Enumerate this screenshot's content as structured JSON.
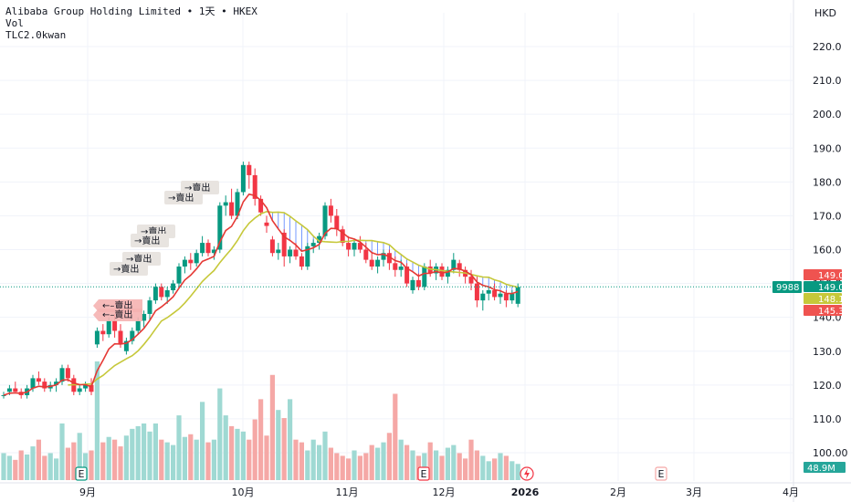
{
  "header": {
    "symbol_line": "Alibaba Group Holding Limited • 1天 • HKEX",
    "indicator_vol": "Vol",
    "indicator_tlc": "TLC2.0kwan"
  },
  "currency": "HKD",
  "colors": {
    "up": "#26a69a",
    "down": "#ef5350",
    "ma_red": "#e53935",
    "ma_yellow": "#c6c83a",
    "cloud": "#2962ff"
  },
  "price_tags": [
    {
      "label": "149.0",
      "color": "#ef5350"
    },
    {
      "label": "149.0",
      "color": "#089981"
    },
    {
      "label": "148.1",
      "color": "#c6c83a",
      "text_color": "#131722"
    },
    {
      "label": "145.3",
      "color": "#ef5350"
    }
  ],
  "symbol_tag": "9988",
  "volume_tag": "48.9M",
  "event_badges": [
    {
      "label": "E",
      "icon": "earnings-icon"
    },
    {
      "label": "E",
      "icon": "earnings-icon"
    },
    {
      "label": "",
      "icon": "dividend-icon"
    },
    {
      "label": "E",
      "icon": "earnings-icon"
    }
  ],
  "annotations": [
    {
      "label": "→賣出"
    },
    {
      "label": "→賣出"
    },
    {
      "label": "→賣出"
    },
    {
      "label": "→賣出"
    },
    {
      "label": "→賣出"
    },
    {
      "label": "→賣出"
    },
    {
      "label": "←–賣出"
    },
    {
      "label": "←–賣出"
    }
  ],
  "chart_data": {
    "type": "candlestick",
    "y_axis": {
      "ticks": [
        100,
        110,
        120,
        130,
        140,
        150,
        160,
        170,
        180,
        190,
        200,
        210,
        220
      ],
      "ylim": [
        97,
        227
      ],
      "labels": [
        "100.00",
        "110.0",
        "120.0",
        "130.0",
        "140.0",
        "150.0",
        "160.0",
        "170.0",
        "180.0",
        "190.0",
        "200.0",
        "210.0",
        "220.0"
      ]
    },
    "x_axis": {
      "labels": [
        "9月",
        "10月",
        "11月",
        "12月",
        "2026",
        "2月",
        "3月",
        "4月"
      ]
    },
    "candles": [
      [
        117,
        118,
        116,
        117
      ],
      [
        118,
        120,
        117,
        119
      ],
      [
        119,
        121,
        118,
        118
      ],
      [
        118,
        119,
        116,
        117
      ],
      [
        117,
        120,
        116,
        119
      ],
      [
        119,
        123,
        118,
        122
      ],
      [
        122,
        124,
        120,
        121
      ],
      [
        121,
        122,
        118,
        119
      ],
      [
        119,
        121,
        118,
        120
      ],
      [
        120,
        122,
        118,
        121
      ],
      [
        121,
        126,
        120,
        125
      ],
      [
        125,
        126,
        121,
        122
      ],
      [
        122,
        123,
        117,
        118
      ],
      [
        118,
        120,
        117,
        119
      ],
      [
        119,
        121,
        118,
        120
      ],
      [
        120,
        122,
        117,
        118
      ],
      [
        132,
        137,
        131,
        136
      ],
      [
        136,
        138,
        133,
        135
      ],
      [
        135,
        140,
        134,
        139
      ],
      [
        139,
        141,
        134,
        136
      ],
      [
        136,
        138,
        131,
        132
      ],
      [
        130,
        134,
        129,
        133
      ],
      [
        133,
        137,
        132,
        136
      ],
      [
        136,
        140,
        135,
        139
      ],
      [
        139,
        142,
        137,
        141
      ],
      [
        141,
        146,
        139,
        145
      ],
      [
        145,
        150,
        144,
        149
      ],
      [
        149,
        150,
        145,
        146
      ],
      [
        146,
        149,
        144,
        148
      ],
      [
        148,
        151,
        147,
        150
      ],
      [
        150,
        156,
        149,
        155
      ],
      [
        155,
        158,
        153,
        157
      ],
      [
        157,
        159,
        154,
        156
      ],
      [
        156,
        160,
        155,
        159
      ],
      [
        159,
        164,
        158,
        162
      ],
      [
        162,
        163,
        158,
        159
      ],
      [
        159,
        161,
        157,
        160
      ],
      [
        160,
        174,
        159,
        173
      ],
      [
        173,
        176,
        170,
        174
      ],
      [
        174,
        178,
        169,
        170
      ],
      [
        170,
        178,
        169,
        177
      ],
      [
        177,
        186,
        176,
        185
      ],
      [
        185,
        186,
        178,
        182
      ],
      [
        182,
        184,
        173,
        175
      ],
      [
        175,
        176,
        170,
        171
      ],
      [
        168,
        170,
        165,
        167
      ],
      [
        163,
        164,
        158,
        159
      ],
      [
        159,
        162,
        157,
        160
      ],
      [
        165,
        166,
        155,
        158
      ],
      [
        158,
        161,
        156,
        160
      ],
      [
        160,
        162,
        157,
        158
      ],
      [
        158,
        159,
        154,
        155
      ],
      [
        155,
        162,
        154,
        161
      ],
      [
        161,
        163,
        159,
        162
      ],
      [
        162,
        165,
        160,
        164
      ],
      [
        164,
        174,
        163,
        173
      ],
      [
        173,
        175,
        168,
        170
      ],
      [
        170,
        172,
        164,
        166
      ],
      [
        166,
        167,
        161,
        162
      ],
      [
        162,
        164,
        158,
        160
      ],
      [
        160,
        163,
        158,
        162
      ],
      [
        162,
        164,
        159,
        160
      ],
      [
        160,
        162,
        156,
        157
      ],
      [
        157,
        159,
        154,
        155
      ],
      [
        155,
        158,
        153,
        157
      ],
      [
        157,
        160,
        155,
        159
      ],
      [
        159,
        160,
        154,
        156
      ],
      [
        156,
        158,
        152,
        154
      ],
      [
        154,
        157,
        152,
        155
      ],
      [
        155,
        156,
        149,
        150
      ],
      [
        148,
        152,
        147,
        151
      ],
      [
        151,
        153,
        148,
        149
      ],
      [
        149,
        156,
        148,
        155
      ],
      [
        155,
        157,
        152,
        153
      ],
      [
        153,
        156,
        151,
        155
      ],
      [
        155,
        156,
        151,
        152
      ],
      [
        152,
        155,
        150,
        154
      ],
      [
        154,
        159,
        153,
        157
      ],
      [
        156,
        157,
        152,
        154
      ],
      [
        154,
        155,
        150,
        152
      ],
      [
        152,
        154,
        148,
        150
      ],
      [
        150,
        152,
        143,
        145
      ],
      [
        145,
        148,
        142,
        147
      ],
      [
        147,
        149,
        145,
        148
      ],
      [
        148,
        150,
        145,
        146
      ],
      [
        146,
        148,
        144,
        147
      ],
      [
        147,
        148,
        143,
        145
      ],
      [
        145,
        148,
        144,
        147
      ],
      [
        144,
        150,
        143,
        149
      ]
    ],
    "volume": [
      20,
      18,
      15,
      22,
      19,
      25,
      30,
      18,
      20,
      16,
      42,
      24,
      28,
      35,
      20,
      22,
      88,
      28,
      32,
      30,
      25,
      33,
      38,
      40,
      42,
      36,
      42,
      30,
      28,
      26,
      48,
      32,
      34,
      30,
      58,
      28,
      30,
      68,
      48,
      40,
      38,
      36,
      30,
      45,
      60,
      33,
      78,
      52,
      46,
      60,
      30,
      28,
      22,
      30,
      26,
      36,
      24,
      20,
      18,
      16,
      22,
      18,
      20,
      26,
      24,
      28,
      35,
      64,
      30,
      26,
      22,
      18,
      20,
      28,
      22,
      18,
      24,
      26,
      20,
      16,
      30,
      22,
      18,
      14,
      16,
      20,
      18,
      14,
      12
    ],
    "series": [
      {
        "name": "",
        "color": "#c6c83a"
      },
      {
        "name": "",
        "color": "#e53935"
      }
    ]
  }
}
